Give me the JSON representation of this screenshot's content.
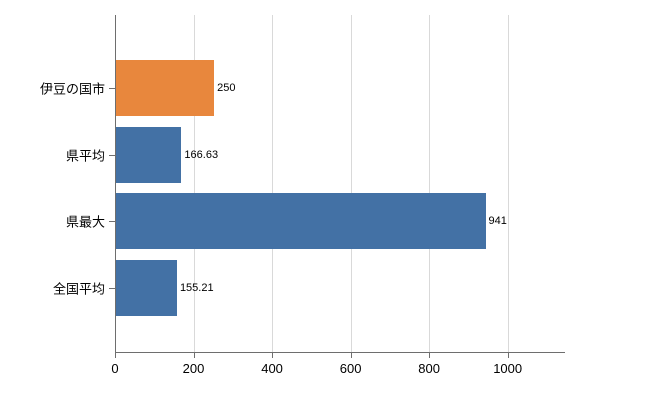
{
  "chart_data": {
    "type": "bar",
    "orientation": "horizontal",
    "title": "",
    "xlabel": "",
    "ylabel": "",
    "categories": [
      "伊豆の国市",
      "県平均",
      "県最大",
      "全国平均"
    ],
    "values": [
      250,
      166.63,
      941,
      155.21
    ],
    "value_labels": [
      "250",
      "166.63",
      "941",
      "155.21"
    ],
    "bar_colors": [
      "#e8873d",
      "#4371a5",
      "#4371a5",
      "#4371a5"
    ],
    "xlim": [
      0,
      1146
    ],
    "x_ticks": [
      0,
      200,
      400,
      600,
      800,
      1000
    ],
    "x_tick_labels": [
      "0",
      "200",
      "400",
      "600",
      "800",
      "1000"
    ],
    "grid": true,
    "legend": false
  },
  "colors": {
    "accent_orange": "#e8873d",
    "accent_blue": "#4371a5",
    "gridline": "#d9d9d9",
    "axis": "#6e6e6e",
    "background": "#ffffff",
    "text": "#000000"
  }
}
